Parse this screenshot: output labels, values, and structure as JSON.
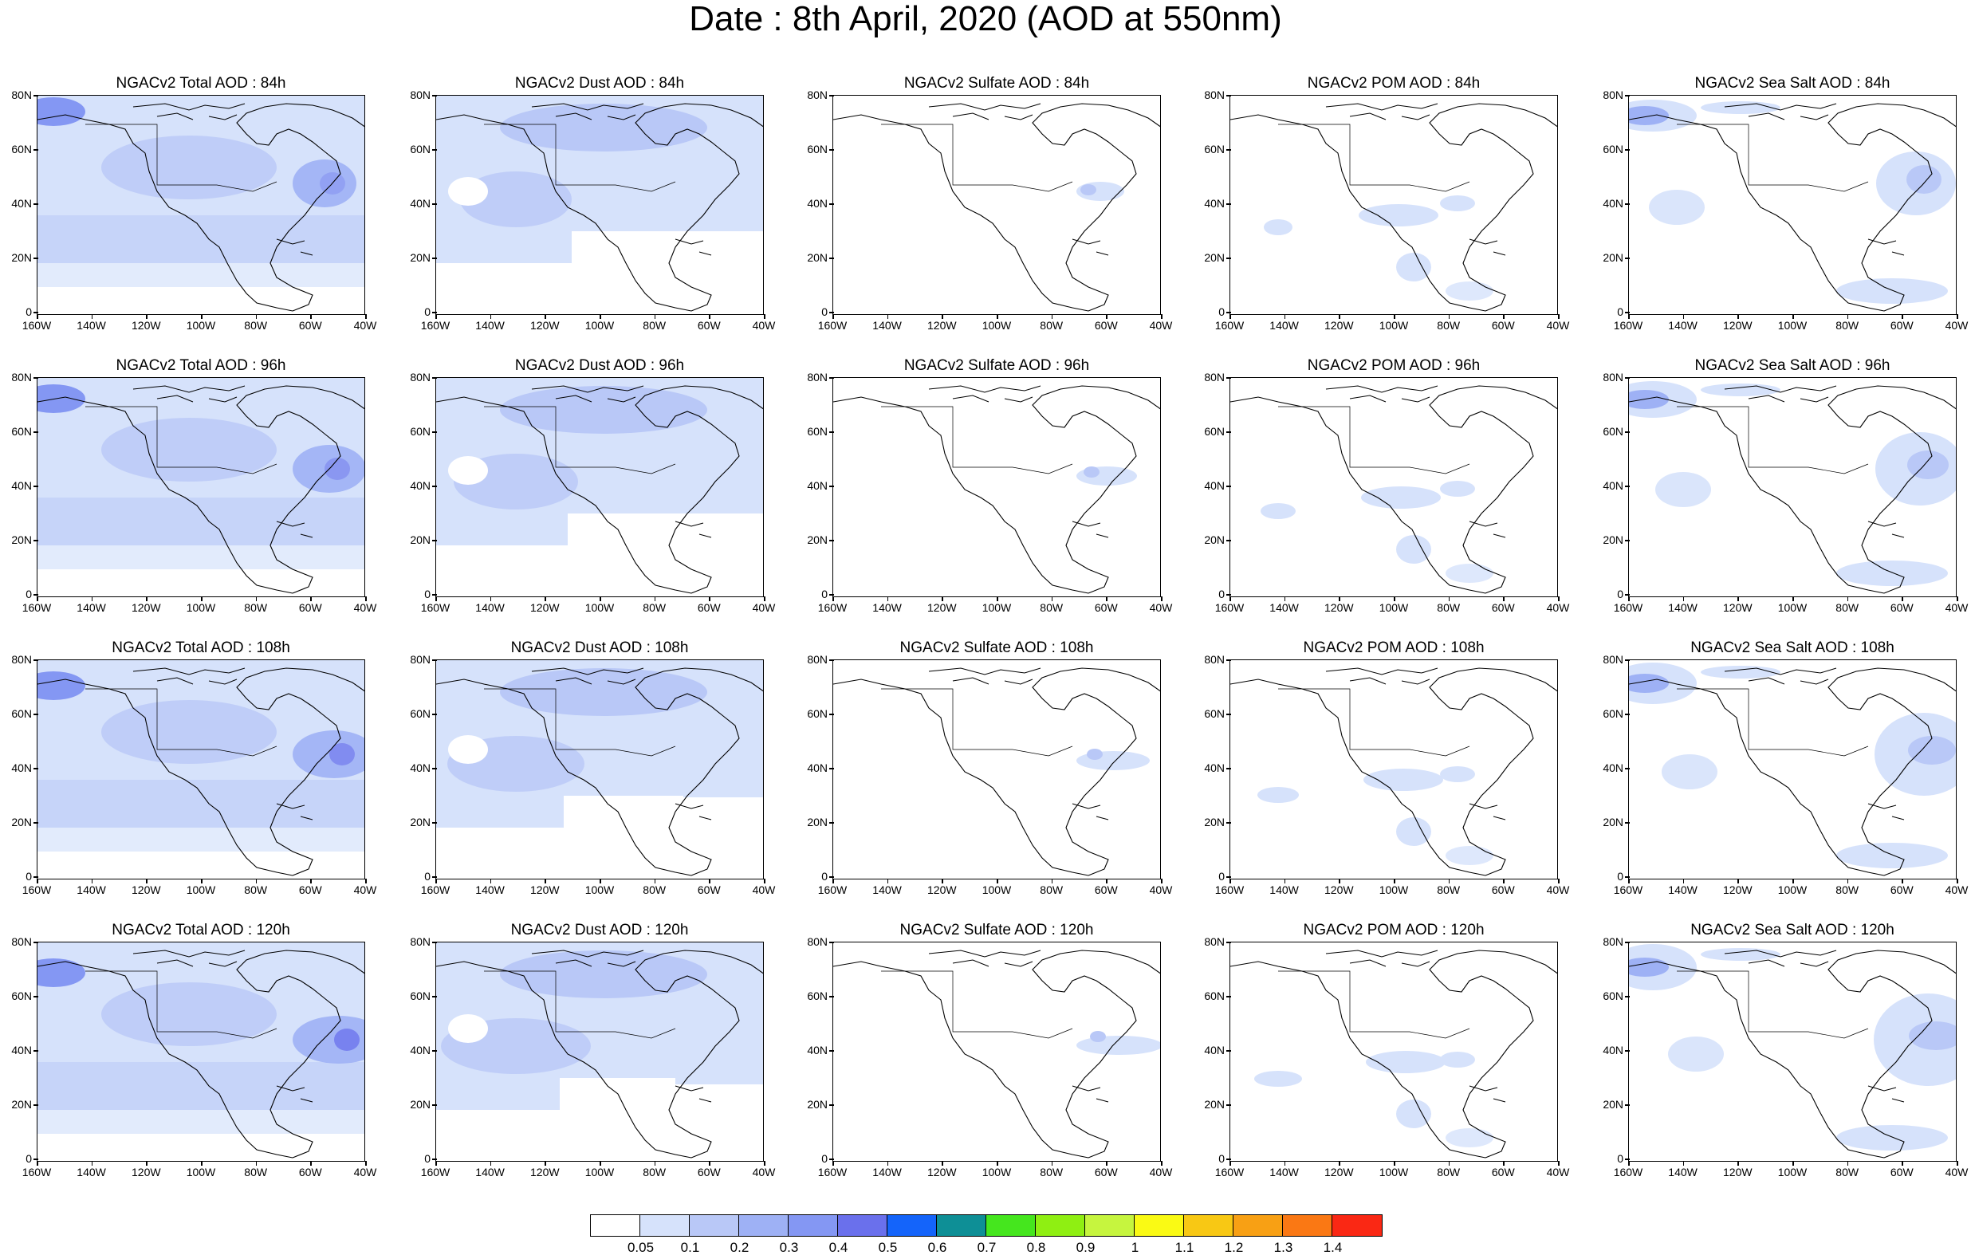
{
  "title": "Date : 8th April, 2020 (AOD at 550nm)",
  "yticks": [
    "80N",
    "60N",
    "40N",
    "20N",
    "0"
  ],
  "xticks": [
    "160W",
    "140W",
    "120W",
    "100W",
    "80W",
    "60W",
    "40W"
  ],
  "panels": [
    [
      "NGACv2 Total AOD : 84h",
      "NGACv2 Dust AOD : 84h",
      "NGACv2 Sulfate AOD : 84h",
      "NGACv2 POM AOD : 84h",
      "NGACv2 Sea Salt AOD : 84h"
    ],
    [
      "NGACv2 Total AOD : 96h",
      "NGACv2 Dust AOD : 96h",
      "NGACv2 Sulfate AOD : 96h",
      "NGACv2 POM AOD : 96h",
      "NGACv2 Sea Salt AOD : 96h"
    ],
    [
      "NGACv2 Total AOD : 108h",
      "NGACv2 Dust AOD : 108h",
      "NGACv2 Sulfate AOD : 108h",
      "NGACv2 POM AOD : 108h",
      "NGACv2 Sea Salt AOD : 108h"
    ],
    [
      "NGACv2 Total AOD : 120h",
      "NGACv2 Dust AOD : 120h",
      "NGACv2 Sulfate AOD : 120h",
      "NGACv2 POM AOD : 120h",
      "NGACv2 Sea Salt  AOD : 120h"
    ]
  ],
  "colorbar": {
    "labels": [
      "0.05",
      "0.1",
      "0.2",
      "0.3",
      "0.4",
      "0.5",
      "0.6",
      "0.7",
      "0.8",
      "0.9",
      "1",
      "1.1",
      "1.2",
      "1.3",
      "1.4"
    ],
    "colors": [
      "#ffffff",
      "#d6e2fb",
      "#b9c8f7",
      "#9eb1f5",
      "#8497f3",
      "#6a70ec",
      "#1464fa",
      "#0e8f96",
      "#45e61e",
      "#8fef12",
      "#c6f53e",
      "#fafa14",
      "#f8c814",
      "#f8a014",
      "#fa7814",
      "#fa2814"
    ]
  }
}
